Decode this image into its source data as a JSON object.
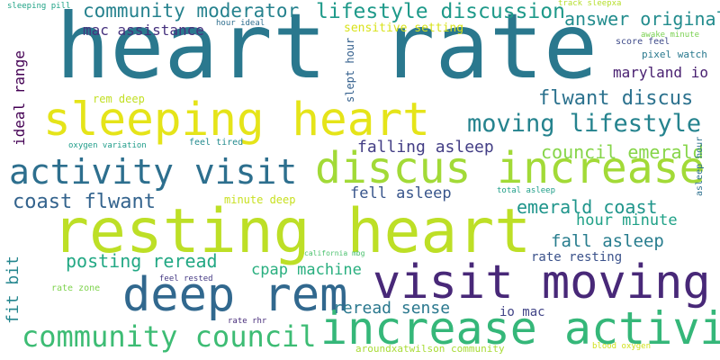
{
  "words": [
    {
      "key": "heart_rate",
      "text": "heart rate",
      "color": "#2a788e",
      "vertical": false
    },
    {
      "key": "resting_heart",
      "text": "resting heart",
      "color": "#bddf26",
      "vertical": false
    },
    {
      "key": "sleeping_heart",
      "text": "sleeping heart",
      "color": "#e5e419",
      "vertical": false
    },
    {
      "key": "visit_moving",
      "text": "visit moving",
      "color": "#482878",
      "vertical": false
    },
    {
      "key": "discus_increase",
      "text": "discus increase",
      "color": "#a2da37",
      "vertical": false
    },
    {
      "key": "deep_rem",
      "text": "deep rem",
      "color": "#31688e",
      "vertical": false
    },
    {
      "key": "increase_activity",
      "text": "increase activity",
      "color": "#35b779",
      "vertical": false
    },
    {
      "key": "activity_visit",
      "text": "activity visit",
      "color": "#2d6f8e",
      "vertical": false
    },
    {
      "key": "community_council",
      "text": "community council",
      "color": "#3dbc74",
      "vertical": false
    },
    {
      "key": "moving_lifestyle",
      "text": "moving lifestyle",
      "color": "#25838e",
      "vertical": false
    },
    {
      "key": "community_moderator",
      "text": "community moderator",
      "color": "#26828e",
      "vertical": false
    },
    {
      "key": "lifestyle_discussion",
      "text": "lifestyle discussion",
      "color": "#1f9a8a",
      "vertical": false
    },
    {
      "key": "answer_original",
      "text": "answer original",
      "color": "#228c8d",
      "vertical": false
    },
    {
      "key": "flwant_discus",
      "text": "flwant discus",
      "color": "#2c728e",
      "vertical": false
    },
    {
      "key": "council_emerald",
      "text": "council emerald",
      "color": "#86d549",
      "vertical": false
    },
    {
      "key": "falling_asleep",
      "text": "falling asleep",
      "color": "#433e85",
      "vertical": false
    },
    {
      "key": "coast_flwant",
      "text": "coast flwant",
      "color": "#33638d",
      "vertical": false
    },
    {
      "key": "fell_asleep",
      "text": "fell asleep",
      "color": "#39568c",
      "vertical": false
    },
    {
      "key": "emerald_coast",
      "text": "emerald coast",
      "color": "#1f958b",
      "vertical": false
    },
    {
      "key": "hour_minute",
      "text": "hour minute",
      "color": "#1fa187",
      "vertical": false
    },
    {
      "key": "fall_asleep",
      "text": "fall asleep",
      "color": "#287d8e",
      "vertical": false
    },
    {
      "key": "posting_reread",
      "text": "posting reread",
      "color": "#22a884",
      "vertical": false
    },
    {
      "key": "cpap_machine",
      "text": "cpap machine",
      "color": "#29af7f",
      "vertical": false
    },
    {
      "key": "reread_sense",
      "text": "reread sense",
      "color": "#2a788e",
      "vertical": false
    },
    {
      "key": "io_mac",
      "text": "io mac",
      "color": "#414487",
      "vertical": false
    },
    {
      "key": "rate_resting",
      "text": "rate resting",
      "color": "#3b528b",
      "vertical": false
    },
    {
      "key": "mac_assistance",
      "text": "mac assistance",
      "color": "#46327e",
      "vertical": false
    },
    {
      "key": "maryland_io",
      "text": "maryland io",
      "color": "#481f70",
      "vertical": false
    },
    {
      "key": "sensitive_setting",
      "text": "sensitive setting",
      "color": "#d8e219",
      "vertical": false
    },
    {
      "key": "rem_deep",
      "text": "rem deep",
      "color": "#c2df23",
      "vertical": false
    },
    {
      "key": "minute_deep",
      "text": "minute deep",
      "color": "#c8e020",
      "vertical": false
    },
    {
      "key": "feel_tired",
      "text": "feel tired",
      "color": "#238a8d",
      "vertical": false
    },
    {
      "key": "oxygen_variation",
      "text": "oxygen variation",
      "color": "#1e9c89",
      "vertical": false
    },
    {
      "key": "sleeping_pill",
      "text": "sleeping pill",
      "color": "#20a386",
      "vertical": false
    },
    {
      "key": "hour_ideal",
      "text": "hour ideal",
      "color": "#2e6e8e",
      "vertical": false
    },
    {
      "key": "track_sleepxa",
      "text": "track sleepxa",
      "color": "#b5de2b",
      "vertical": false
    },
    {
      "key": "awake_minute",
      "text": "awake minute",
      "color": "#7ad151",
      "vertical": false
    },
    {
      "key": "score_feel",
      "text": "score feel",
      "color": "#3e4a89",
      "vertical": false
    },
    {
      "key": "pixel_watch",
      "text": "pixel watch",
      "color": "#29798e",
      "vertical": false
    },
    {
      "key": "total_asleep",
      "text": "total asleep",
      "color": "#1f9e89",
      "vertical": false
    },
    {
      "key": "california_mbg",
      "text": "california mbg",
      "color": "#4ac16d",
      "vertical": false
    },
    {
      "key": "feel_rested",
      "text": "feel rested",
      "color": "#443983",
      "vertical": false
    },
    {
      "key": "rate_zone",
      "text": "rate zone",
      "color": "#7fd34e",
      "vertical": false
    },
    {
      "key": "rate_rhr",
      "text": "rate rhr",
      "color": "#472c7a",
      "vertical": false
    },
    {
      "key": "aroundxatwilson_community",
      "text": "aroundxatwilson community",
      "color": "#a8db34",
      "vertical": false
    },
    {
      "key": "blood_oxygen",
      "text": "blood oxygen",
      "color": "#d0e11c",
      "vertical": false
    },
    {
      "key": "ideal_range",
      "text": "ideal range",
      "color": "#440154",
      "vertical": true
    },
    {
      "key": "slept_hour",
      "text": "slept hour",
      "color": "#34608d",
      "vertical": true
    },
    {
      "key": "asleep_hour",
      "text": "asleep hour",
      "color": "#2d708e",
      "vertical": true
    },
    {
      "key": "fit_bit",
      "text": "fit bit",
      "color": "#24868e",
      "vertical": true
    }
  ]
}
